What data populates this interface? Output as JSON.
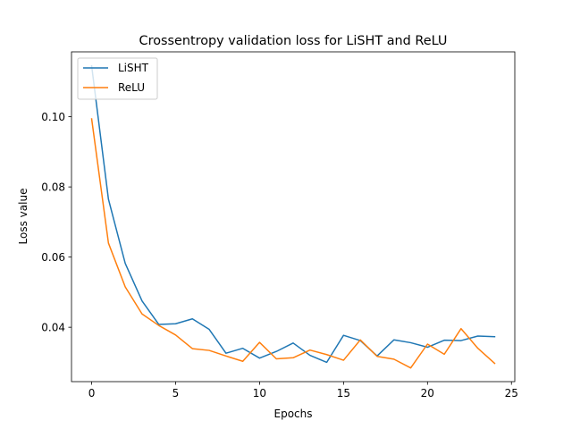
{
  "chart_data": {
    "type": "line",
    "title": "Crossentropy validation loss for LiSHT and ReLU",
    "xlabel": "Epochs",
    "ylabel": "Loss value",
    "xlim": [
      -1.2,
      25.2
    ],
    "ylim": [
      0.0245,
      0.1185
    ],
    "xticks": [
      0,
      5,
      10,
      15,
      20,
      25
    ],
    "xtick_labels": [
      "0",
      "5",
      "10",
      "15",
      "20",
      "25"
    ],
    "yticks": [
      0.04,
      0.06,
      0.08,
      0.1
    ],
    "ytick_labels": [
      "0.04",
      "0.06",
      "0.08",
      "0.10"
    ],
    "grid": false,
    "legend_position": "upper-left",
    "x": [
      0,
      1,
      2,
      3,
      4,
      5,
      6,
      7,
      8,
      9,
      10,
      11,
      12,
      13,
      14,
      15,
      16,
      17,
      18,
      19,
      20,
      21,
      22,
      23,
      24
    ],
    "series": [
      {
        "name": "LiSHT",
        "color": "#1f77b4",
        "values": [
          0.1145,
          0.0765,
          0.0582,
          0.0475,
          0.0408,
          0.041,
          0.0424,
          0.0394,
          0.0326,
          0.034,
          0.0312,
          0.0331,
          0.0355,
          0.032,
          0.03,
          0.0377,
          0.0362,
          0.0318,
          0.0364,
          0.0356,
          0.0343,
          0.0363,
          0.0362,
          0.0375,
          0.0373
        ]
      },
      {
        "name": "ReLU",
        "color": "#ff7f0e",
        "values": [
          0.0994,
          0.064,
          0.0515,
          0.0438,
          0.0405,
          0.0378,
          0.0339,
          0.0334,
          0.0318,
          0.0303,
          0.0357,
          0.031,
          0.0313,
          0.0335,
          0.0322,
          0.0306,
          0.0364,
          0.0317,
          0.0309,
          0.0284,
          0.0352,
          0.0323,
          0.0396,
          0.034,
          0.0297
        ]
      }
    ]
  }
}
